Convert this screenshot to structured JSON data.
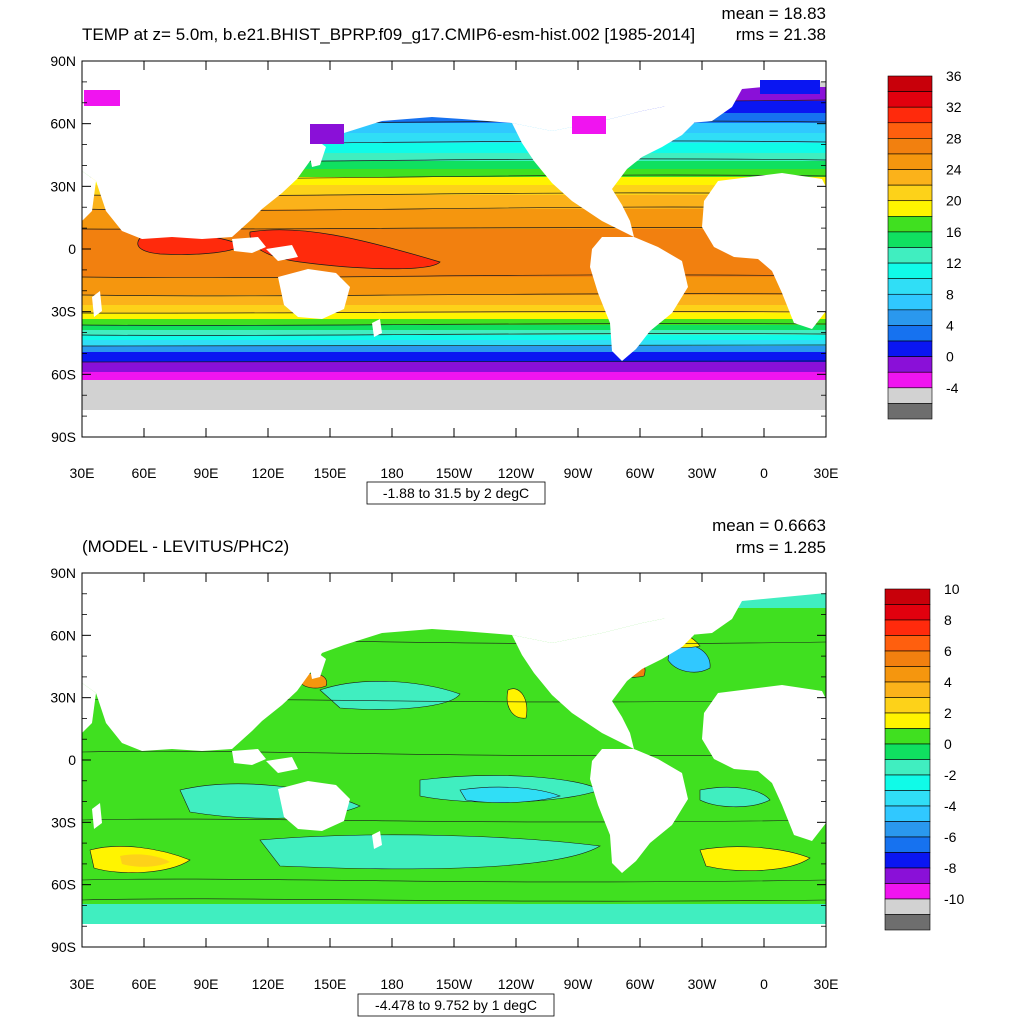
{
  "panels": [
    {
      "id": "top",
      "title": "TEMP at z=   5.0m, b.e21.BHIST_BPRP.f09_g17.CMIP6-esm-hist.002 [1985-2014]",
      "stats": {
        "mean": "mean = 18.83",
        "rms": "rms = 21.38"
      },
      "range_label": "-1.88 to 31.5 by 2 degC",
      "lat_ticks": [
        "90N",
        "60N",
        "30N",
        "0",
        "30S",
        "60S",
        "90S"
      ],
      "lon_ticks": [
        "30E",
        "60E",
        "90E",
        "120E",
        "150E",
        "180",
        "150W",
        "120W",
        "90W",
        "60W",
        "30W",
        "0",
        "30E"
      ],
      "colorbar": {
        "labels": [
          "36",
          "32",
          "28",
          "24",
          "20",
          "16",
          "12",
          "8",
          "4",
          "0",
          "-4"
        ],
        "colors": [
          "#c8000a",
          "#e1000e",
          "#ff2a0c",
          "#ff5f0e",
          "#f2800f",
          "#f5960e",
          "#fbb21a",
          "#fdd219",
          "#fff400",
          "#40e020",
          "#10e060",
          "#40eec0",
          "#10fbe8",
          "#30def6",
          "#30c8ff",
          "#2a98ee",
          "#1672f0",
          "#0a16f2",
          "#8a10d8",
          "#f014f0",
          "#d2d2d2",
          "#6e6e6e"
        ]
      }
    },
    {
      "id": "bottom",
      "title": "(MODEL - LEVITUS/PHC2)",
      "stats": {
        "mean": "mean = 0.6663",
        "rms": "rms = 1.285"
      },
      "range_label": "-4.478 to 9.752 by 1 degC",
      "lat_ticks": [
        "90N",
        "60N",
        "30N",
        "0",
        "30S",
        "60S",
        "90S"
      ],
      "lon_ticks": [
        "30E",
        "60E",
        "90E",
        "120E",
        "150E",
        "180",
        "150W",
        "120W",
        "90W",
        "60W",
        "30W",
        "0",
        "30E"
      ],
      "colorbar": {
        "labels": [
          "10",
          "8",
          "6",
          "4",
          "2",
          "0",
          "-2",
          "-4",
          "-6",
          "-8",
          "-10"
        ],
        "colors": [
          "#c8000a",
          "#e1000e",
          "#ff2a0c",
          "#ff5f0e",
          "#f2800f",
          "#f5960e",
          "#fbb21a",
          "#fdd219",
          "#fff400",
          "#40e020",
          "#10e060",
          "#40eec0",
          "#10fbe8",
          "#30def6",
          "#30c8ff",
          "#2a98ee",
          "#1672f0",
          "#0a16f2",
          "#8a10d8",
          "#f014f0",
          "#d2d2d2",
          "#6e6e6e"
        ]
      }
    }
  ],
  "colors": {
    "land": "#ffffff",
    "ice": "#d2d2d2",
    "contour": "#1a1a1a"
  }
}
